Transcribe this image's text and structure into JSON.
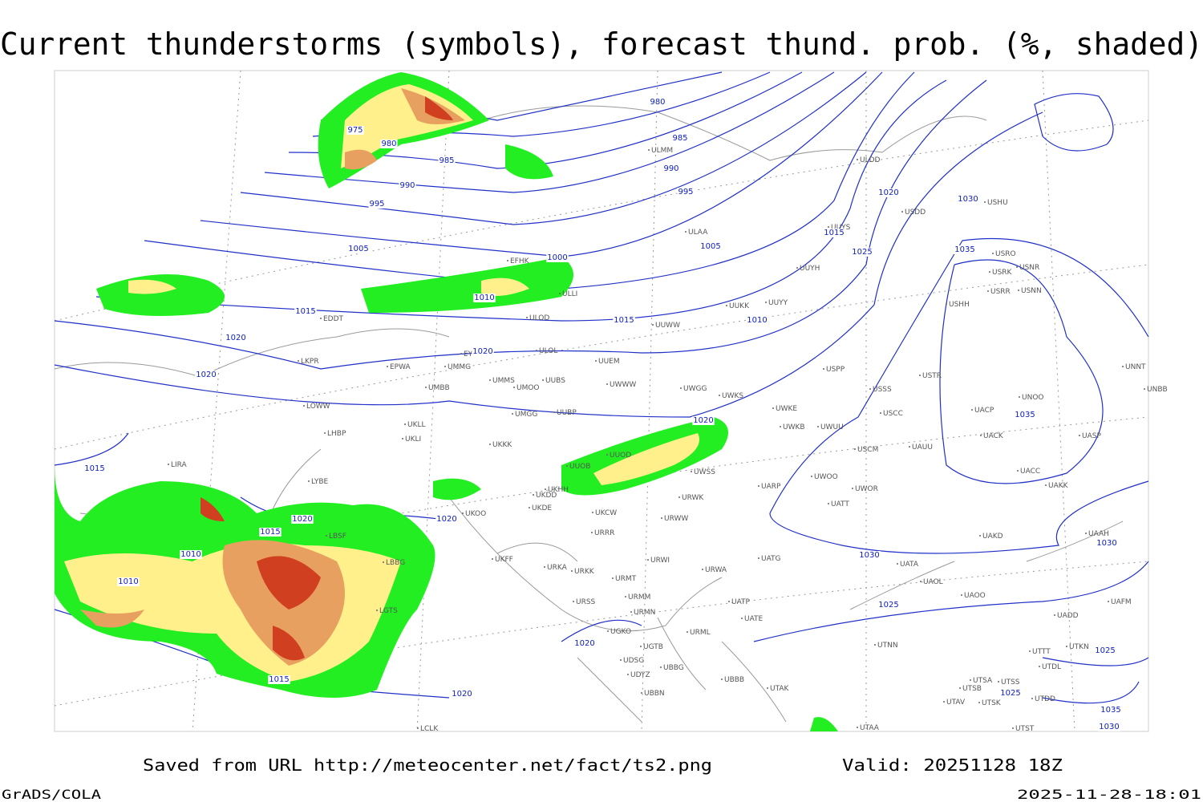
{
  "title": "Current thunderstorms (symbols), forecast thund. prob. (%, shaded)",
  "footer": {
    "source": "Saved from URL http://meteocenter.net/fact/ts2.png",
    "valid": "Valid: 20251128 18Z",
    "software": "GrADS/COLA",
    "timestamp": "2025-11-28-18:01"
  },
  "isobar_labels": [
    "980",
    "975",
    "980",
    "985",
    "985",
    "990",
    "990",
    "995",
    "995",
    "1020",
    "1030",
    "1015",
    "1005",
    "1005",
    "1025",
    "1035",
    "1000",
    "1010",
    "1015",
    "1010",
    "1015",
    "1020",
    "1020",
    "1020",
    "1020",
    "1035",
    "1015",
    "1020",
    "1020",
    "1015",
    "1010",
    "1030",
    "1030",
    "1010",
    "1025",
    "1020",
    "1025",
    "1015",
    "1020",
    "1025",
    "1035",
    "1030"
  ],
  "stations": [
    "ULMM",
    "ULDD",
    "USDD",
    "USHU",
    "ULAA",
    "UUYS",
    "USRO",
    "USRK",
    "USNR",
    "USRR",
    "USNN",
    "EFHK",
    "UUYH",
    "ULLI",
    "USHH",
    "UUKK",
    "UUYY",
    "ULOD",
    "EDDT",
    "UUWW",
    "ULOL",
    "EYVI",
    "UUEM",
    "LKPR",
    "EPWA",
    "UMMG",
    "USTR",
    "UNNT",
    "UMMS",
    "UUBS",
    "UWWW",
    "UMOO",
    "USPP",
    "UMBB",
    "UWGG",
    "UWKS",
    "USSS",
    "UNOO",
    "UNBB",
    "LOWW",
    "UWKE",
    "UACP",
    "UMGG",
    "UUBP",
    "USCC",
    "UKLL",
    "UWKB",
    "UWUU",
    "LHBP",
    "UKLI",
    "UACK",
    "UASP",
    "UKKK",
    "UUOD",
    "USCM",
    "UAUU",
    "LIRA",
    "UUOB",
    "UWSS",
    "UACC",
    "UKHH",
    "LYBE",
    "UKDD",
    "UAKK",
    "UARP",
    "UWOO",
    "UWOR",
    "UKDE",
    "URWK",
    "UKOO",
    "UKCW",
    "UATT",
    "URWW",
    "URRR",
    "LBSF",
    "UAKD",
    "UAAH",
    "UKFF",
    "URWI",
    "UATG",
    "LBBG",
    "UATA",
    "URKA",
    "URKK",
    "URWA",
    "UAOL",
    "URMT",
    "UAOO",
    "UAFM",
    "URSS",
    "URMM",
    "UATP",
    "LGTS",
    "URMN",
    "UATE",
    "UADD",
    "UGKO",
    "URML",
    "UTNN",
    "UGTB",
    "UTTT",
    "UTKN",
    "UDSG",
    "UTDL",
    "UBBG",
    "UDYZ",
    "UBBB",
    "UTSA",
    "UTSS",
    "UTAK",
    "UTSB",
    "UBBN",
    "UTDD",
    "UTAV",
    "UTSK",
    "LCLK",
    "UTAA",
    "UTST"
  ]
}
